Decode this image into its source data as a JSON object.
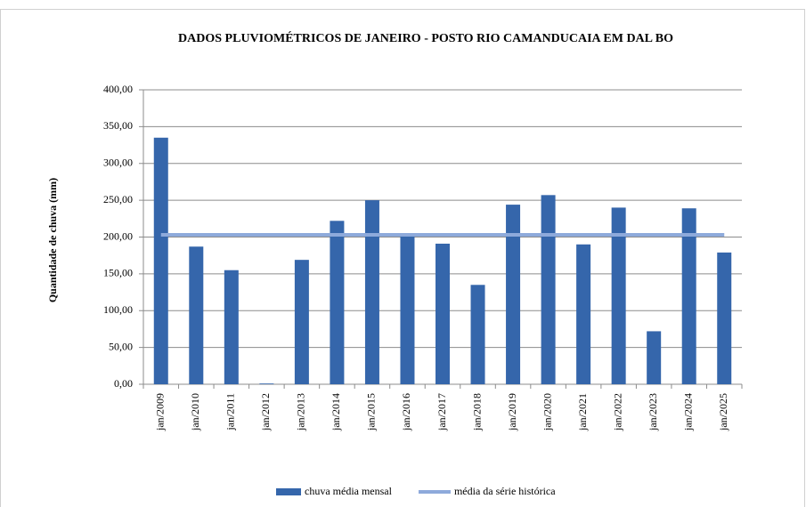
{
  "chart_data": {
    "type": "bar",
    "title": "DADOS PLUVIOMÉTRICOS DE JANEIRO - POSTO RIO CAMANDUCAIA EM DAL BO",
    "y_label": "Quantidade de chuva (mm)",
    "categories": [
      "jan/2009",
      "jan/2010",
      "jan/2011",
      "jan/2012",
      "jan/2013",
      "jan/2014",
      "jan/2015",
      "jan/2016",
      "jan/2017",
      "jan/2018",
      "jan/2019",
      "jan/2020",
      "jan/2021",
      "jan/2022",
      "jan/2023",
      "jan/2024",
      "jan/2025"
    ],
    "series": [
      {
        "name": "chuva média mensal",
        "type": "bar",
        "color": "#3566ab",
        "values": [
          335,
          187,
          155,
          1,
          169,
          222,
          250,
          205,
          191,
          135,
          244,
          257,
          190,
          240,
          72,
          239,
          179
        ]
      },
      {
        "name": "média da série histórica",
        "type": "line",
        "color": "#8eaadb",
        "values": [
          203,
          203,
          203,
          203,
          203,
          203,
          203,
          203,
          203,
          203,
          203,
          203,
          203,
          203,
          203,
          203,
          203
        ]
      }
    ],
    "ylim": [
      0,
      400
    ],
    "yticks": [
      {
        "value": 0,
        "label": "0,00"
      },
      {
        "value": 50,
        "label": "50,00"
      },
      {
        "value": 100,
        "label": "100,00"
      },
      {
        "value": 150,
        "label": "150,00"
      },
      {
        "value": 200,
        "label": "200,00"
      },
      {
        "value": 250,
        "label": "250,00"
      },
      {
        "value": 300,
        "label": "300,00"
      },
      {
        "value": 350,
        "label": "350,00"
      },
      {
        "value": 400,
        "label": "400,00"
      }
    ],
    "grid": true,
    "legend": "bottom"
  }
}
